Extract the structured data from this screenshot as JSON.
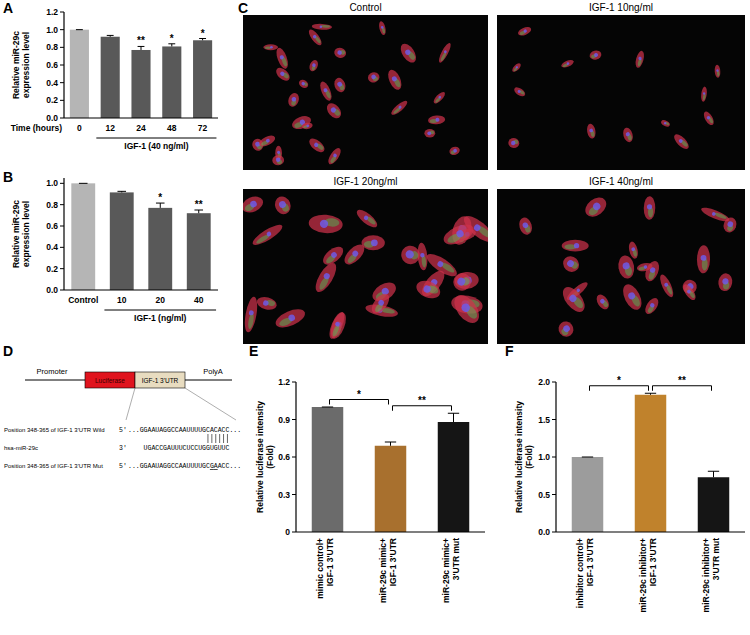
{
  "chart_data": [
    {
      "type": "bar",
      "panel": "A",
      "y_label": "Relative miR-29c\nexpression level",
      "x_label": "Time (hours)",
      "group_label": "IGF-1 (40 ng/ml)",
      "categories": [
        "0",
        "12",
        "24",
        "48",
        "72"
      ],
      "values": [
        1.0,
        0.92,
        0.77,
        0.81,
        0.88
      ],
      "errors": [
        0,
        0.015,
        0.04,
        0.03,
        0.02
      ],
      "significance": [
        null,
        null,
        "**",
        "*",
        "*"
      ],
      "colors": [
        "#b5b5b5",
        "#595959",
        "#595959",
        "#595959",
        "#595959"
      ],
      "ylim": [
        0,
        1.2
      ],
      "yticks": [
        {
          "value": 0,
          "label": "0.0"
        },
        0.2,
        0.4,
        0.6,
        0.8,
        {
          "value": 1,
          "label": "1.0"
        },
        1.2
      ]
    },
    {
      "type": "bar",
      "panel": "B",
      "y_label": "Relative miR-29c\nexpression level",
      "group_label": "IGF-1 (ng/ml)",
      "categories": [
        "Control",
        "10",
        "20",
        "40"
      ],
      "values": [
        1.0,
        0.915,
        0.77,
        0.72
      ],
      "errors": [
        0,
        0.01,
        0.045,
        0.03
      ],
      "significance": [
        null,
        null,
        "*",
        "**"
      ],
      "colors": [
        "#b5b5b5",
        "#595959",
        "#595959",
        "#595959"
      ],
      "ylim": [
        0,
        1.05
      ],
      "yticks": [
        {
          "value": 0,
          "label": "0.0"
        },
        0.2,
        0.4,
        0.6,
        0.8,
        {
          "value": 1,
          "label": "1.0"
        }
      ]
    },
    {
      "type": "bar",
      "panel": "E",
      "y_label": "Relative luciferase intensity\n(Fold)",
      "categories": [
        "mimic control+\nIGF-1 3'UTR",
        "miR-29c mimic+\nIGF-1 3'UTR",
        "miR-29c mimic+\n3'UTR mut"
      ],
      "values": [
        1.0,
        0.69,
        0.88
      ],
      "errors": [
        0,
        0.03,
        0.07
      ],
      "colors": [
        "#6b6b6b",
        "#a8702e",
        "#151515"
      ],
      "ylim": [
        0,
        1.2
      ],
      "yticks": [
        0,
        0.3,
        0.6,
        0.9,
        1.2
      ],
      "comparisons": [
        {
          "pair": [
            0,
            1
          ],
          "label": "*"
        },
        {
          "pair": [
            1,
            2
          ],
          "label": "**"
        }
      ]
    },
    {
      "type": "bar",
      "panel": "F",
      "y_label": "Relative luciferase intensity\n(Fold)",
      "categories": [
        "inhibitor control+\nIGF-1 3'UTR",
        "miR-29c inhibitor+\nIGF-1 3'UTR",
        "miR-29c inhibitor+\n3'UTR mut"
      ],
      "values": [
        1.0,
        1.83,
        0.73
      ],
      "errors": [
        0,
        0.02,
        0.08
      ],
      "colors": [
        "#9c9c9c",
        "#c0822c",
        "#151515"
      ],
      "ylim": [
        0,
        2.0
      ],
      "yticks": [
        {
          "value": 0,
          "label": "0.0"
        },
        0.5,
        {
          "value": 1,
          "label": "1.0"
        },
        1.5,
        {
          "value": 2,
          "label": "2.0"
        }
      ],
      "comparisons": [
        {
          "pair": [
            0,
            1
          ],
          "label": "*"
        },
        {
          "pair": [
            1,
            2
          ],
          "label": "**"
        }
      ]
    }
  ],
  "images": {
    "panel": "C",
    "titles": [
      "Control",
      "IGF-1 10ng/ml",
      "IGF-1 20ng/ml",
      "IGF-1 40ng/ml"
    ]
  },
  "diagram": {
    "panel": "D",
    "promoter": "Promoter",
    "reporter": "Luciferase",
    "utr": "IGF-1 3'UTR",
    "polya": "PolyA",
    "rows": [
      {
        "label": "Position 348-365 of IGF-1 3'UTR Wild",
        "end": "5'",
        "sequence": "...GGAAUAGGCCAAUUUUGCACACC..."
      },
      {
        "label": "hsa-miR-29c",
        "end": "3'",
        "sequence": "UGACCGAUUUCUCCUGGUGUUC"
      },
      {
        "label": "Position 348-365 of IGF-1 3'UTR Mut",
        "end": "5'",
        "sequence": "...GGAAUAGGCCAAUUUUGCGAACC..."
      }
    ]
  }
}
